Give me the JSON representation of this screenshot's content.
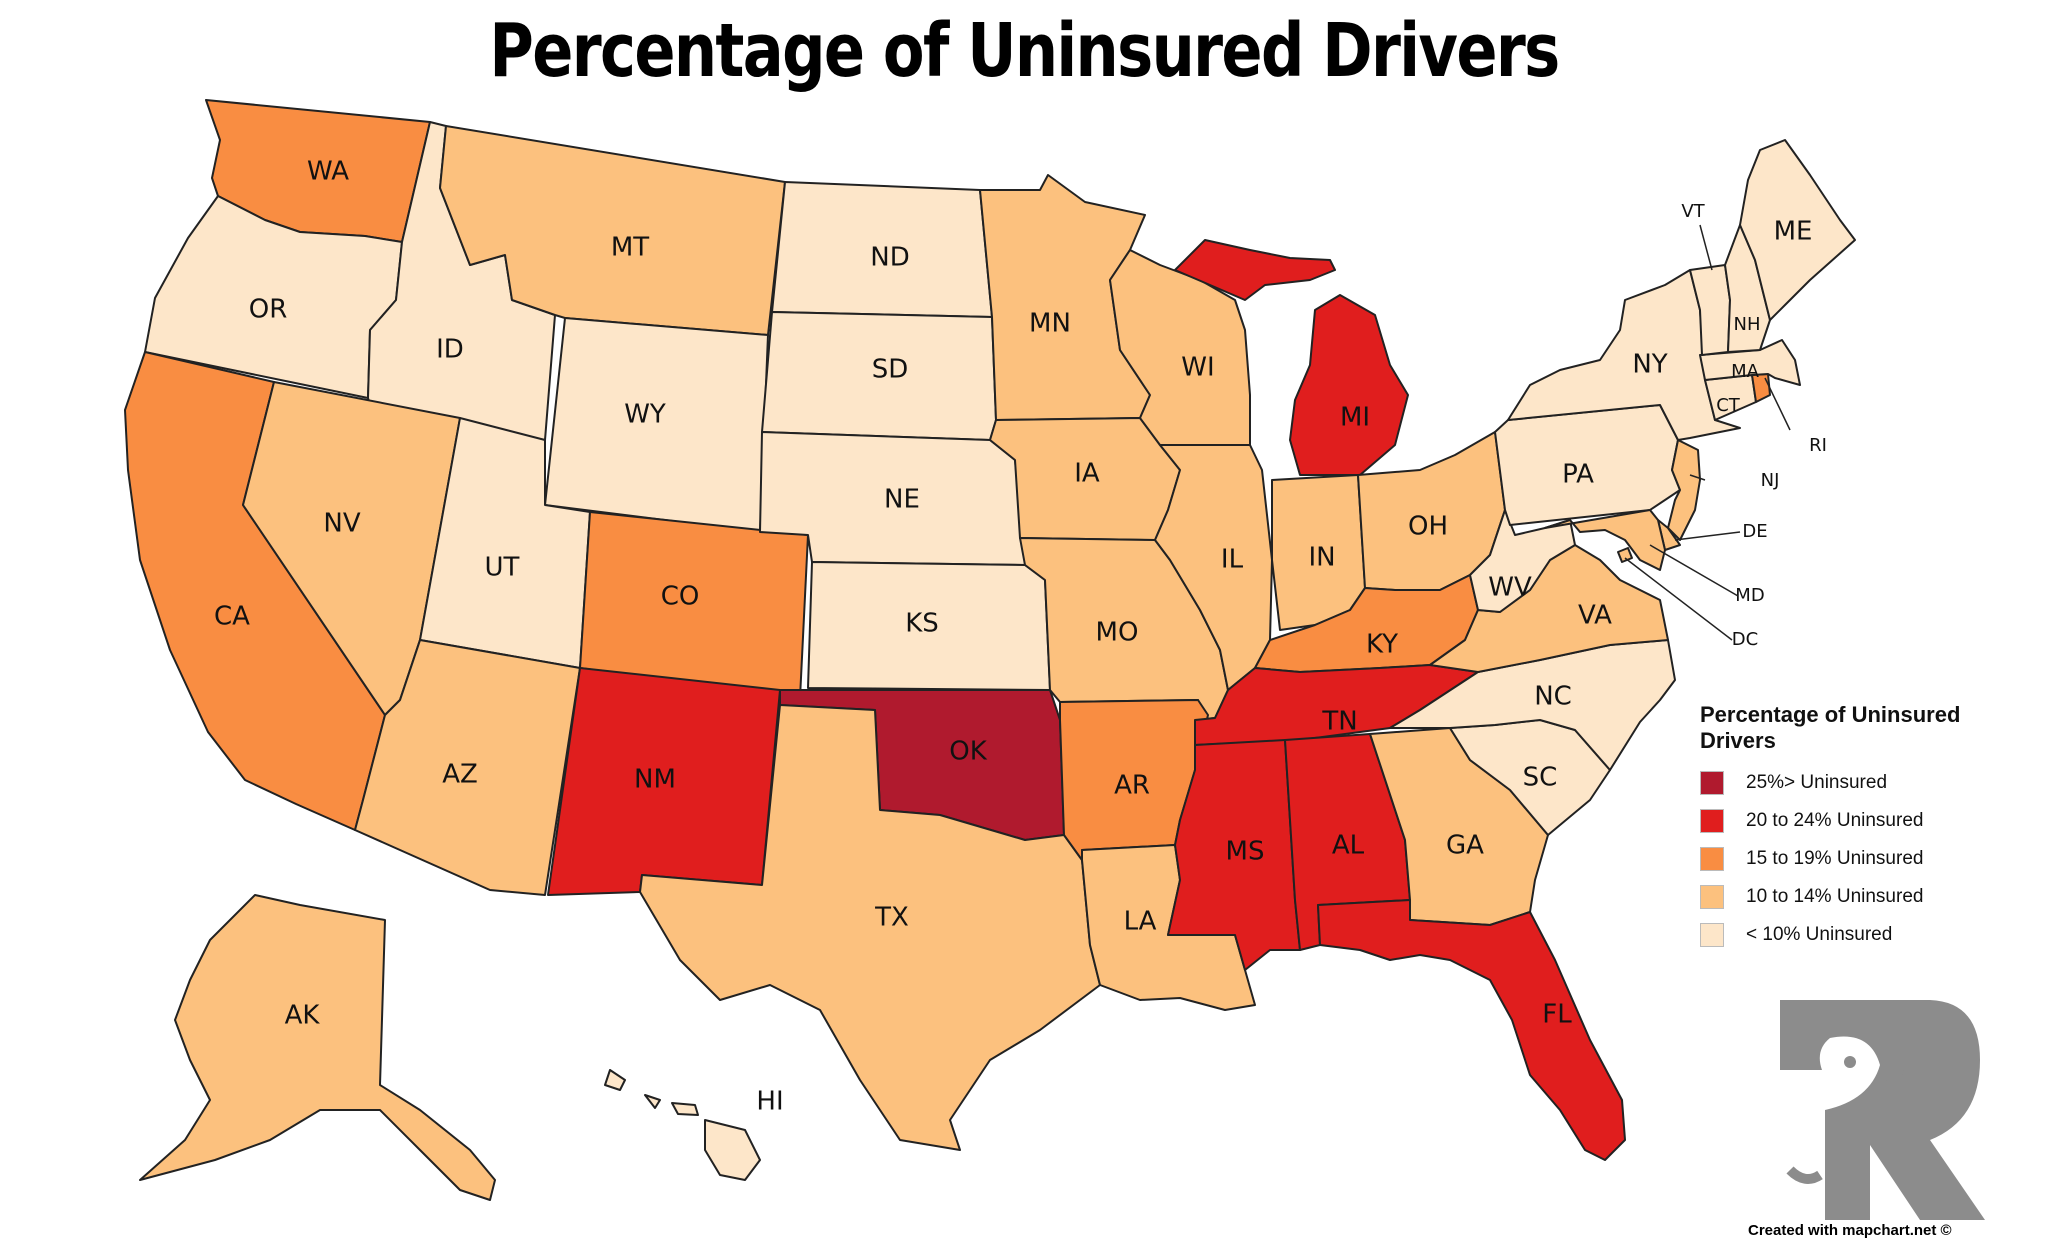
{
  "title": "Percentage of Uninsured Drivers",
  "legend": {
    "title": "Percentage of Uninsured Drivers",
    "items": [
      {
        "label": "25%> Uninsured",
        "color": "#b01a2e"
      },
      {
        "label": "20 to 24% Uninsured",
        "color": "#e01e1e"
      },
      {
        "label": "15 to 19% Uninsured",
        "color": "#f98d42"
      },
      {
        "label": "10 to 14% Uninsured",
        "color": "#fcc17e"
      },
      {
        "label": "< 10% Uninsured",
        "color": "#fde6c9"
      }
    ]
  },
  "footer": "Created with mapchart.net ©",
  "logo": "eagle-r-logo",
  "states": {
    "WA": {
      "label": "WA",
      "category": 2
    },
    "OR": {
      "label": "OR",
      "category": 4
    },
    "CA": {
      "label": "CA",
      "category": 2
    },
    "ID": {
      "label": "ID",
      "category": 4
    },
    "NV": {
      "label": "NV",
      "category": 3
    },
    "MT": {
      "label": "MT",
      "category": 3
    },
    "WY": {
      "label": "WY",
      "category": 4
    },
    "UT": {
      "label": "UT",
      "category": 4
    },
    "AZ": {
      "label": "AZ",
      "category": 3
    },
    "CO": {
      "label": "CO",
      "category": 2
    },
    "NM": {
      "label": "NM",
      "category": 1
    },
    "ND": {
      "label": "ND",
      "category": 4
    },
    "SD": {
      "label": "SD",
      "category": 4
    },
    "NE": {
      "label": "NE",
      "category": 4
    },
    "KS": {
      "label": "KS",
      "category": 4
    },
    "OK": {
      "label": "OK",
      "category": 0
    },
    "TX": {
      "label": "TX",
      "category": 3
    },
    "MN": {
      "label": "MN",
      "category": 3
    },
    "IA": {
      "label": "IA",
      "category": 3
    },
    "MO": {
      "label": "MO",
      "category": 3
    },
    "AR": {
      "label": "AR",
      "category": 2
    },
    "LA": {
      "label": "LA",
      "category": 3
    },
    "WI": {
      "label": "WI",
      "category": 3
    },
    "IL": {
      "label": "IL",
      "category": 3
    },
    "MI": {
      "label": "MI",
      "category": 1
    },
    "IN": {
      "label": "IN",
      "category": 3
    },
    "OH": {
      "label": "OH",
      "category": 3
    },
    "KY": {
      "label": "KY",
      "category": 2
    },
    "TN": {
      "label": "TN",
      "category": 1
    },
    "MS": {
      "label": "MS",
      "category": 1
    },
    "AL": {
      "label": "AL",
      "category": 1
    },
    "GA": {
      "label": "GA",
      "category": 3
    },
    "FL": {
      "label": "FL",
      "category": 1
    },
    "SC": {
      "label": "SC",
      "category": 4
    },
    "NC": {
      "label": "NC",
      "category": 4
    },
    "VA": {
      "label": "VA",
      "category": 3
    },
    "WV": {
      "label": "WV",
      "category": 4
    },
    "PA": {
      "label": "PA",
      "category": 4
    },
    "NY": {
      "label": "NY",
      "category": 4
    },
    "NJ": {
      "label": "NJ",
      "category": 3
    },
    "DE": {
      "label": "DE",
      "category": 3
    },
    "MD": {
      "label": "MD",
      "category": 3
    },
    "DC": {
      "label": "DC",
      "category": 3
    },
    "CT": {
      "label": "CT",
      "category": 4
    },
    "RI": {
      "label": "RI",
      "category": 2
    },
    "MA": {
      "label": "MA",
      "category": 4
    },
    "VT": {
      "label": "VT",
      "category": 4
    },
    "NH": {
      "label": "NH",
      "category": 4
    },
    "ME": {
      "label": "ME",
      "category": 4
    },
    "AK": {
      "label": "AK",
      "category": 3
    },
    "HI": {
      "label": "HI",
      "category": 4
    }
  }
}
